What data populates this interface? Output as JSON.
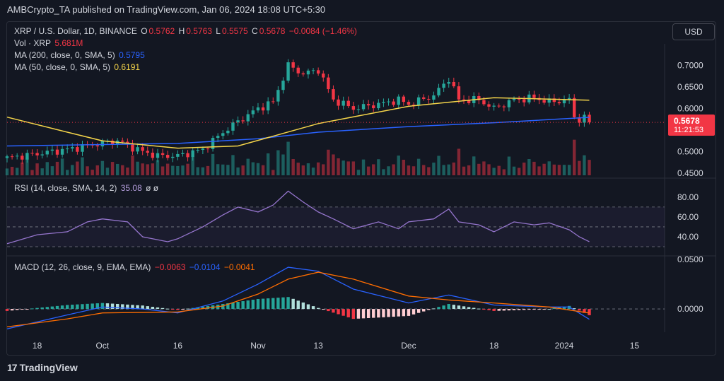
{
  "header": {
    "text": "AMBCrypto_TA published on TradingView.com, Jan 06, 2024 18:08 UTC+5:30"
  },
  "currency_button": "USD",
  "legend": {
    "symbol": "XRP / U.S. Dollar, 1D, BINANCE",
    "o_label": "O",
    "o": "0.5762",
    "h_label": "H",
    "h": "0.5763",
    "l_label": "L",
    "l": "0.5575",
    "c_label": "C",
    "c": "0.5678",
    "change": "−0.0084 (−1.46%)",
    "vol_label": "Vol · XRP",
    "vol": "5.681M",
    "ma200_label": "MA (200, close, 0, SMA, 5)",
    "ma200": "0.5795",
    "ma50_label": "MA (50, close, 0, SMA, 5)",
    "ma50": "0.6191",
    "rsi_label": "RSI (14, close, SMA, 14, 2)",
    "rsi": "35.08",
    "rsi_extra": "ø  ø",
    "macd_label": "MACD (12, 26, close, 9, EMA, EMA)",
    "macd1": "−0.0063",
    "macd2": "−0.0104",
    "macd3": "−0.0041"
  },
  "price_tag": {
    "price": "0.5678",
    "countdown": "11:21:53"
  },
  "brand": "TradingView",
  "colors": {
    "up": "#26a69a",
    "down": "#f23645",
    "ma200": "#2962ff",
    "ma50": "#f5d54a",
    "rsi": "#9575cd",
    "macd": "#2962ff",
    "signal": "#ff6d00"
  },
  "chart_data": [
    {
      "type": "candlestick",
      "title": "XRP / U.S. Dollar, 1D, BINANCE",
      "ylim": [
        0.445,
        0.75
      ],
      "y_ticks": [
        "0.7000",
        "0.6500",
        "0.6000",
        "0.5000",
        "0.4500"
      ],
      "y_tick_values": [
        0.7,
        0.65,
        0.6,
        0.5,
        0.45
      ],
      "x_ticks": [
        "18",
        "Oct",
        "16",
        "Nov",
        "13",
        "Dec",
        "18",
        "2024",
        "15"
      ],
      "x_tick_dates": [
        "2023-09-18",
        "2023-10-01",
        "2023-10-16",
        "2023-11-01",
        "2023-11-13",
        "2023-12-01",
        "2023-12-18",
        "2024-01-01",
        "2024-01-15"
      ],
      "x_range": [
        "2023-09-12",
        "2024-01-21"
      ],
      "ohlc_anchors": [
        {
          "date": "2023-09-12",
          "close": 0.485
        },
        {
          "date": "2023-09-18",
          "close": 0.495
        },
        {
          "date": "2023-09-24",
          "close": 0.505
        },
        {
          "date": "2023-10-01",
          "close": 0.52
        },
        {
          "date": "2023-10-04",
          "close": 0.525
        },
        {
          "date": "2023-10-09",
          "close": 0.5
        },
        {
          "date": "2023-10-12",
          "close": 0.49
        },
        {
          "date": "2023-10-16",
          "close": 0.49
        },
        {
          "date": "2023-10-21",
          "close": 0.505
        },
        {
          "date": "2023-10-25",
          "close": 0.545
        },
        {
          "date": "2023-10-28",
          "close": 0.57
        },
        {
          "date": "2023-11-01",
          "close": 0.6
        },
        {
          "date": "2023-11-04",
          "close": 0.615
        },
        {
          "date": "2023-11-07",
          "close": 0.7
        },
        {
          "date": "2023-11-10",
          "close": 0.68
        },
        {
          "date": "2023-11-13",
          "close": 0.69
        },
        {
          "date": "2023-11-16",
          "close": 0.62
        },
        {
          "date": "2023-11-20",
          "close": 0.6
        },
        {
          "date": "2023-11-25",
          "close": 0.61
        },
        {
          "date": "2023-11-29",
          "close": 0.62
        },
        {
          "date": "2023-12-01",
          "close": 0.61
        },
        {
          "date": "2023-12-06",
          "close": 0.63
        },
        {
          "date": "2023-12-09",
          "close": 0.67
        },
        {
          "date": "2023-12-11",
          "close": 0.62
        },
        {
          "date": "2023-12-15",
          "close": 0.62
        },
        {
          "date": "2023-12-18",
          "close": 0.6
        },
        {
          "date": "2023-12-22",
          "close": 0.62
        },
        {
          "date": "2023-12-26",
          "close": 0.625
        },
        {
          "date": "2023-12-29",
          "close": 0.615
        },
        {
          "date": "2024-01-02",
          "close": 0.62
        },
        {
          "date": "2024-01-03",
          "close": 0.58
        },
        {
          "date": "2024-01-04",
          "close": 0.575
        },
        {
          "date": "2024-01-05",
          "close": 0.578
        },
        {
          "date": "2024-01-06",
          "close": 0.5678
        }
      ],
      "ma200_anchors": [
        {
          "date": "2023-09-12",
          "value": 0.513
        },
        {
          "date": "2023-10-16",
          "value": 0.519
        },
        {
          "date": "2023-11-01",
          "value": 0.53
        },
        {
          "date": "2023-11-13",
          "value": 0.545
        },
        {
          "date": "2023-12-01",
          "value": 0.558
        },
        {
          "date": "2023-12-18",
          "value": 0.567
        },
        {
          "date": "2024-01-06",
          "value": 0.5795
        }
      ],
      "ma50_anchors": [
        {
          "date": "2023-09-12",
          "value": 0.58
        },
        {
          "date": "2023-09-24",
          "value": 0.545
        },
        {
          "date": "2023-10-01",
          "value": 0.525
        },
        {
          "date": "2023-10-16",
          "value": 0.508
        },
        {
          "date": "2023-10-28",
          "value": 0.513
        },
        {
          "date": "2023-11-13",
          "value": 0.565
        },
        {
          "date": "2023-12-01",
          "value": 0.605
        },
        {
          "date": "2023-12-18",
          "value": 0.625
        },
        {
          "date": "2024-01-06",
          "value": 0.6191
        }
      ],
      "last_price": 0.5678
    },
    {
      "type": "line",
      "title": "RSI (14, close, SMA, 14, 2)",
      "ylim": [
        25,
        92
      ],
      "y_ticks": [
        "80.00",
        "60.00",
        "40.00"
      ],
      "y_tick_values": [
        80,
        60,
        40
      ],
      "band": [
        30,
        70
      ],
      "series": [
        {
          "name": "RSI",
          "points": [
            {
              "date": "2023-09-12",
              "value": 33
            },
            {
              "date": "2023-09-18",
              "value": 42
            },
            {
              "date": "2023-09-24",
              "value": 45
            },
            {
              "date": "2023-09-28",
              "value": 55
            },
            {
              "date": "2023-10-01",
              "value": 58
            },
            {
              "date": "2023-10-06",
              "value": 55
            },
            {
              "date": "2023-10-09",
              "value": 40
            },
            {
              "date": "2023-10-14",
              "value": 35
            },
            {
              "date": "2023-10-16",
              "value": 38
            },
            {
              "date": "2023-10-21",
              "value": 50
            },
            {
              "date": "2023-10-25",
              "value": 62
            },
            {
              "date": "2023-10-28",
              "value": 70
            },
            {
              "date": "2023-11-01",
              "value": 65
            },
            {
              "date": "2023-11-04",
              "value": 72
            },
            {
              "date": "2023-11-07",
              "value": 86
            },
            {
              "date": "2023-11-10",
              "value": 75
            },
            {
              "date": "2023-11-13",
              "value": 65
            },
            {
              "date": "2023-11-16",
              "value": 58
            },
            {
              "date": "2023-11-20",
              "value": 48
            },
            {
              "date": "2023-11-25",
              "value": 55
            },
            {
              "date": "2023-11-29",
              "value": 48
            },
            {
              "date": "2023-12-01",
              "value": 55
            },
            {
              "date": "2023-12-06",
              "value": 58
            },
            {
              "date": "2023-12-09",
              "value": 68
            },
            {
              "date": "2023-12-11",
              "value": 55
            },
            {
              "date": "2023-12-15",
              "value": 52
            },
            {
              "date": "2023-12-18",
              "value": 45
            },
            {
              "date": "2023-12-22",
              "value": 55
            },
            {
              "date": "2023-12-26",
              "value": 52
            },
            {
              "date": "2023-12-29",
              "value": 54
            },
            {
              "date": "2024-01-02",
              "value": 47
            },
            {
              "date": "2024-01-04",
              "value": 40
            },
            {
              "date": "2024-01-06",
              "value": 35.08
            }
          ]
        }
      ]
    },
    {
      "type": "line",
      "title": "MACD (12, 26, close, 9, EMA, EMA)",
      "ylim": [
        -0.022,
        0.052
      ],
      "y_ticks": [
        "0.0500",
        "0.0000"
      ],
      "y_tick_values": [
        0.05,
        0.0
      ],
      "series": [
        {
          "name": "MACD",
          "points": [
            {
              "date": "2023-09-12",
              "value": -0.02
            },
            {
              "date": "2023-09-24",
              "value": -0.006
            },
            {
              "date": "2023-10-01",
              "value": 0.002
            },
            {
              "date": "2023-10-09",
              "value": 0.0
            },
            {
              "date": "2023-10-16",
              "value": -0.004
            },
            {
              "date": "2023-10-25",
              "value": 0.008
            },
            {
              "date": "2023-11-01",
              "value": 0.025
            },
            {
              "date": "2023-11-07",
              "value": 0.042
            },
            {
              "date": "2023-11-13",
              "value": 0.038
            },
            {
              "date": "2023-11-20",
              "value": 0.02
            },
            {
              "date": "2023-12-01",
              "value": 0.006
            },
            {
              "date": "2023-12-09",
              "value": 0.014
            },
            {
              "date": "2023-12-18",
              "value": 0.004
            },
            {
              "date": "2023-12-29",
              "value": 0.002
            },
            {
              "date": "2024-01-02",
              "value": 0.002
            },
            {
              "date": "2024-01-06",
              "value": -0.0104
            }
          ]
        },
        {
          "name": "Signal",
          "points": [
            {
              "date": "2023-09-12",
              "value": -0.018
            },
            {
              "date": "2023-09-24",
              "value": -0.01
            },
            {
              "date": "2023-10-01",
              "value": -0.004
            },
            {
              "date": "2023-10-16",
              "value": -0.003
            },
            {
              "date": "2023-10-25",
              "value": 0.003
            },
            {
              "date": "2023-11-01",
              "value": 0.015
            },
            {
              "date": "2023-11-07",
              "value": 0.03
            },
            {
              "date": "2023-11-13",
              "value": 0.037
            },
            {
              "date": "2023-11-20",
              "value": 0.03
            },
            {
              "date": "2023-12-01",
              "value": 0.013
            },
            {
              "date": "2023-12-09",
              "value": 0.009
            },
            {
              "date": "2023-12-18",
              "value": 0.006
            },
            {
              "date": "2023-12-29",
              "value": 0.002
            },
            {
              "date": "2024-01-06",
              "value": -0.0041
            }
          ]
        }
      ],
      "last_macd": -0.0063
    }
  ]
}
